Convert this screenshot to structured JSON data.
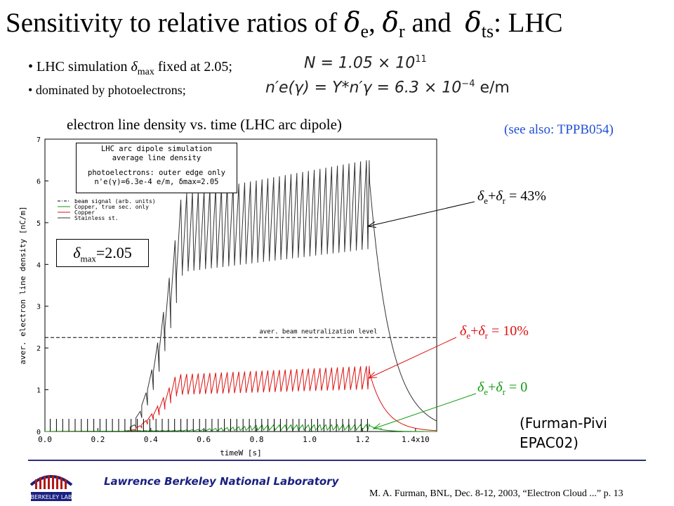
{
  "title": {
    "prefix": "Sensitivity to relative ratios of ",
    "d": "δ",
    "e": "e",
    "sep1": ", ",
    "r": "r",
    "and": " and ",
    "ts": "ts",
    "suffix": ": LHC"
  },
  "bullets": [
    {
      "text_pre": "LHC simulation ",
      "delta": "δ",
      "sub": "max",
      "text_post": " fixed at 2.05;",
      "equation": "N = 1.05 × 10",
      "eq_sup": "11"
    },
    {
      "text": "dominated by photoelectrons;",
      "equation": "n′e(γ) = Y*n′γ = 6.3 × 10",
      "eq_sup": "−4",
      "eq_unit": " e/m"
    }
  ],
  "plot_title": "electron line density vs. time (LHC arc dipole)",
  "see_also": "(see also: TPPB054)",
  "inset": {
    "line1": "LHC arc dipole simulation",
    "line2": "average line density",
    "line3": "photoelectrons: outer edge only",
    "line4": "n'e(γ)=6.3e-4 e/m, δmax=2.05"
  },
  "dmax_box": {
    "delta": "δ",
    "sub": "max",
    "value": "=2.05"
  },
  "neutralization_label": "aver. beam neutralization level",
  "annotations": [
    {
      "text_a": "δ",
      "sub_a": "e",
      "plus": "+",
      "text_b": "δ",
      "sub_b": "r",
      "value": " = 43%",
      "color": "#000000"
    },
    {
      "text_a": "δ",
      "sub_a": "e",
      "plus": "+",
      "text_b": "δ",
      "sub_b": "r",
      "value": " = 10%",
      "color": "#dd1111"
    },
    {
      "text_a": "δ",
      "sub_a": "e",
      "plus": "+",
      "text_b": "δ",
      "sub_b": "r",
      "value": " = 0",
      "color": "#119911"
    }
  ],
  "credit_line1": "(Furman-Pivi",
  "credit_line2": "EPAC02)",
  "footer": {
    "lab": "Lawrence Berkeley National Laboratory",
    "citation": "M. A. Furman, BNL, Dec. 8-12, 2003, “Electron Cloud ...”  p. 13",
    "logo_text": "BERKELEY LAB"
  },
  "chart_data": {
    "type": "line",
    "xlabel": "timeW [s]",
    "ylabel": "aver. electron line density [nC/m]",
    "xlim": [
      0,
      1.48
    ],
    "ylim": [
      0,
      7
    ],
    "x_ticks": [
      "0.0",
      "0.2",
      "0.4",
      "0.6",
      "0.8",
      "1.0",
      "1.2",
      "1.4x10"
    ],
    "y_ticks": [
      "0",
      "1",
      "2",
      "3",
      "4",
      "5",
      "6",
      "7"
    ],
    "neutralization_level": 2.25,
    "series": [
      {
        "name": "beam signal (arb. units)",
        "color": "#000000",
        "style": "dash-dot"
      },
      {
        "name": "Copper, true sec. only",
        "color": "#119911",
        "peak_plateau": 0.15
      },
      {
        "name": "Copper",
        "color": "#dd1111",
        "peak_plateau": 1.4,
        "trough_plateau": 0.9
      },
      {
        "name": "Stainless st.",
        "color": "#333333",
        "peak_plateau": 5.8,
        "trough_plateau": 3.9
      }
    ],
    "fill_end_time": 1.22,
    "grid": false,
    "legend": "top-left"
  }
}
